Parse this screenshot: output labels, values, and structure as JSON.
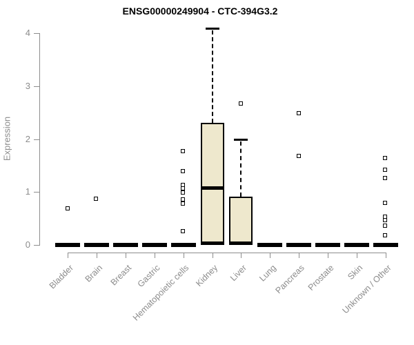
{
  "title": "ENSG00000249904 - CTC-394G3.2",
  "chart_data": {
    "type": "boxplot",
    "title": "ENSG00000249904 - CTC-394G3.2",
    "xlabel": "",
    "ylabel": "Expression",
    "ylim": [
      0,
      4
    ],
    "yticks": [
      0,
      1,
      2,
      3,
      4
    ],
    "grid": false,
    "legend": "none",
    "categories": [
      "Bladder",
      "Brain",
      "Breast",
      "Gastric",
      "Hematopoietic cells",
      "Kidney",
      "Liver",
      "Lung",
      "Pancreas",
      "Prostate",
      "Skin",
      "Unknown / Other"
    ],
    "boxes": [
      {
        "category": "Bladder",
        "q1": 0,
        "median": 0,
        "q3": 0,
        "whisker_low": 0,
        "whisker_high": 0,
        "outliers": [
          0.69
        ]
      },
      {
        "category": "Brain",
        "q1": 0,
        "median": 0,
        "q3": 0,
        "whisker_low": 0,
        "whisker_high": 0,
        "outliers": [
          0.87
        ]
      },
      {
        "category": "Breast",
        "q1": 0,
        "median": 0,
        "q3": 0,
        "whisker_low": 0,
        "whisker_high": 0,
        "outliers": []
      },
      {
        "category": "Gastric",
        "q1": 0,
        "median": 0,
        "q3": 0,
        "whisker_low": 0,
        "whisker_high": 0,
        "outliers": []
      },
      {
        "category": "Hematopoietic cells",
        "q1": 0,
        "median": 0,
        "q3": 0,
        "whisker_low": 0,
        "whisker_high": 0,
        "outliers": [
          1.76,
          1.39,
          1.13,
          1.06,
          0.98,
          0.85,
          0.77,
          0.25
        ]
      },
      {
        "category": "Kidney",
        "q1": 0,
        "median": 1.07,
        "q3": 2.31,
        "whisker_low": 0,
        "whisker_high": 4.09,
        "outliers": []
      },
      {
        "category": "Liver",
        "q1": 0,
        "median": 0.02,
        "q3": 0.91,
        "whisker_low": 0,
        "whisker_high": 2.0,
        "outliers": [
          2.67
        ]
      },
      {
        "category": "Lung",
        "q1": 0,
        "median": 0,
        "q3": 0,
        "whisker_low": 0,
        "whisker_high": 0,
        "outliers": []
      },
      {
        "category": "Pancreas",
        "q1": 0,
        "median": 0,
        "q3": 0,
        "whisker_low": 0,
        "whisker_high": 0,
        "outliers": [
          2.48,
          1.67
        ]
      },
      {
        "category": "Prostate",
        "q1": 0,
        "median": 0,
        "q3": 0,
        "whisker_low": 0,
        "whisker_high": 0,
        "outliers": []
      },
      {
        "category": "Skin",
        "q1": 0,
        "median": 0,
        "q3": 0,
        "whisker_low": 0,
        "whisker_high": 0,
        "outliers": []
      },
      {
        "category": "Unknown / Other",
        "q1": 0,
        "median": 0,
        "q3": 0,
        "whisker_low": 0,
        "whisker_high": 0,
        "outliers": [
          1.63,
          1.42,
          1.26,
          0.79,
          0.53,
          0.46,
          0.36,
          0.18
        ]
      }
    ],
    "colors": {
      "box_fill": "#EEE8CD",
      "box_border": "#000000",
      "median": "#000000",
      "axis": "#8C8C8C",
      "tick_label": "#8C8C8C",
      "title": "#000000",
      "background": "#FFFFFF"
    }
  }
}
